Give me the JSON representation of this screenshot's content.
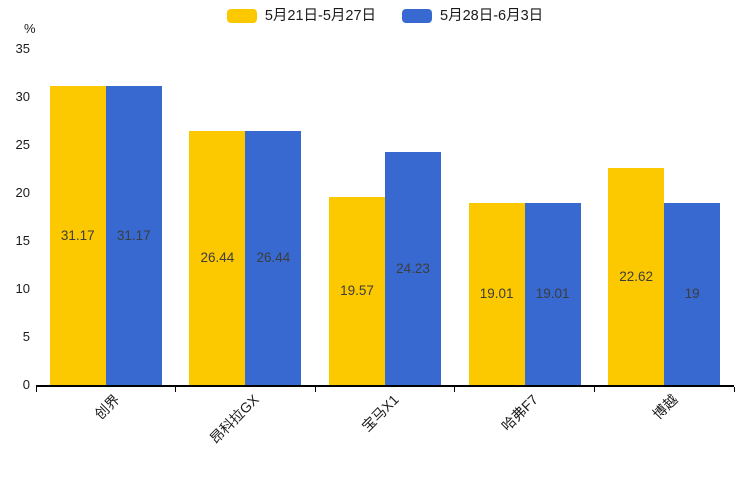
{
  "chart_data": {
    "type": "bar",
    "title": "",
    "unit_label": "%",
    "categories": [
      "创界",
      "昂科拉GX",
      "宝马X1",
      "哈弗F7",
      "博越"
    ],
    "series": [
      {
        "name": "5月21日-5月27日",
        "color": "#FCC800",
        "values": [
          31.17,
          26.44,
          19.57,
          19.01,
          22.62
        ],
        "value_labels": [
          "31.17",
          "26.44",
          "19.57",
          "19.01",
          "22.62"
        ]
      },
      {
        "name": "5月28日-6月3日",
        "color": "#3769D0",
        "values": [
          31.17,
          26.44,
          24.23,
          19.01,
          19
        ],
        "value_labels": [
          "31.17",
          "26.44",
          "24.23",
          "19.01",
          "19"
        ]
      }
    ],
    "xlabel": "",
    "ylabel": "%",
    "ylim": [
      0,
      35
    ],
    "yticks": [
      0,
      5,
      10,
      15,
      20,
      25,
      30,
      35
    ],
    "grid": false,
    "legend_position": "top-center",
    "value_label_color": "#3d3d3d",
    "axis_color": "#000000"
  }
}
